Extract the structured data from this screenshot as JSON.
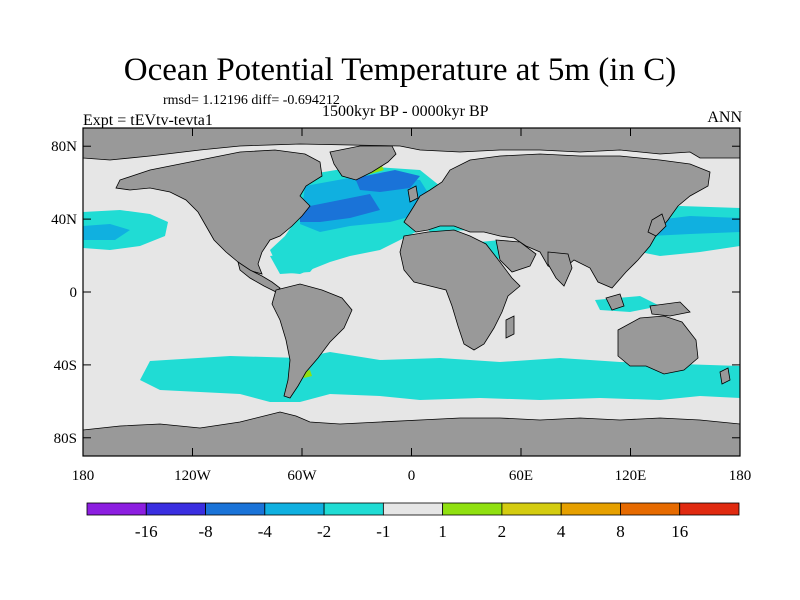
{
  "title": "Ocean Potential Temperature at 5m (in C)",
  "stats_line": "rmsd= 1.12196  diff= -0.694212",
  "experiment_label": "Expt = tEVtv-tevta1",
  "period_label": "1500kyr BP - 0000kyr BP",
  "season_label": "ANN",
  "map": {
    "lon_range": [
      -180,
      180
    ],
    "lat_range": [
      -90,
      90
    ],
    "lat_ticks": [
      {
        "value": 80,
        "label": "80N"
      },
      {
        "value": 40,
        "label": "40N"
      },
      {
        "value": 0,
        "label": "0"
      },
      {
        "value": -40,
        "label": "40S"
      },
      {
        "value": -80,
        "label": "80S"
      }
    ],
    "lon_ticks": [
      {
        "value": -180,
        "label": "180"
      },
      {
        "value": -120,
        "label": "120W"
      },
      {
        "value": -60,
        "label": "60W"
      },
      {
        "value": 0,
        "label": "0"
      },
      {
        "value": 60,
        "label": "60E"
      },
      {
        "value": 120,
        "label": "120E"
      },
      {
        "value": 180,
        "label": "180"
      }
    ]
  },
  "colors": {
    "land": "#999999",
    "ocean_neutral": "#e6e6e6",
    "minus_1_to_minus_2": "#20dcd4",
    "minus_2_to_minus_4": "#10b0e0",
    "minus_4_to_minus_8": "#1a73d8",
    "positive_1_to_2": "#90e010"
  },
  "colorbar": {
    "colors": [
      "#8c1ee0",
      "#3a2ee0",
      "#1a73d8",
      "#10b0e0",
      "#20dcd4",
      "#e6e6e6",
      "#90e010",
      "#d4cc10",
      "#e6a000",
      "#e66a00",
      "#e02a10"
    ],
    "labels": [
      {
        "boundary": 1,
        "text": "-16"
      },
      {
        "boundary": 2,
        "text": "-8"
      },
      {
        "boundary": 3,
        "text": "-4"
      },
      {
        "boundary": 4,
        "text": "-2"
      },
      {
        "boundary": 5,
        "text": "-1"
      },
      {
        "boundary": 6,
        "text": "1"
      },
      {
        "boundary": 7,
        "text": "2"
      },
      {
        "boundary": 8,
        "text": "4"
      },
      {
        "boundary": 9,
        "text": "8"
      },
      {
        "boundary": 10,
        "text": "16"
      }
    ]
  }
}
